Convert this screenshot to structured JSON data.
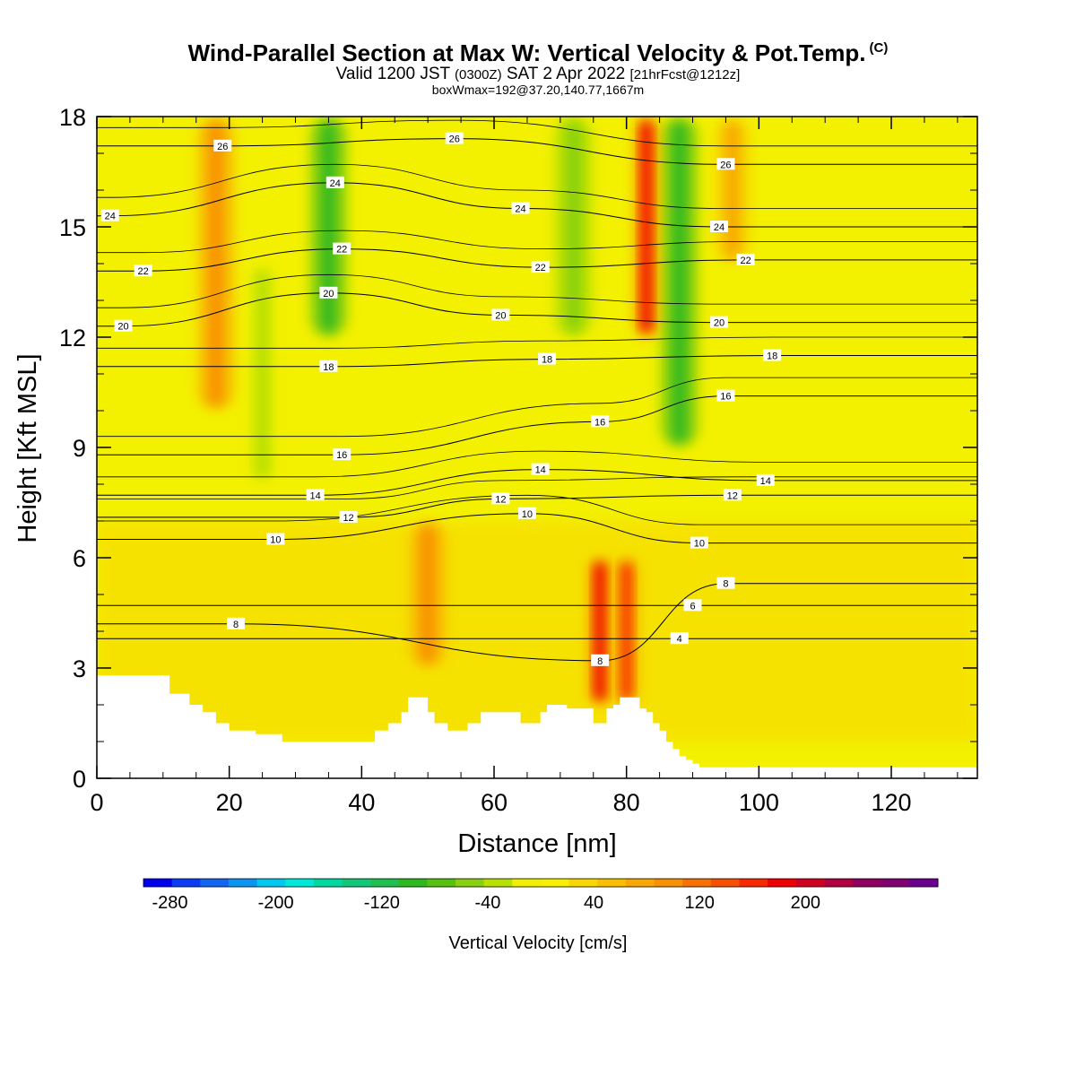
{
  "title": {
    "main": "Wind-Parallel Section at Max W: Vertical Velocity & Pot.Temp.",
    "copyright": "(C)",
    "line2_a": "Valid 1200 JST",
    "line2_b": "(0300Z)",
    "line2_c": "SAT 2 Apr 2022",
    "line2_d": "[21hrFcst@1212z]",
    "line3": "boxWmax=192@37.20,140.77,1667m"
  },
  "chart_data": {
    "type": "heatmap",
    "xlabel": "Distance [nm]",
    "ylabel": "Height [Kft MSL]",
    "xlim": [
      0,
      133
    ],
    "ylim": [
      0,
      18
    ],
    "x_ticks": [
      0,
      20,
      40,
      60,
      80,
      100,
      120
    ],
    "y_ticks": [
      0,
      3,
      6,
      9,
      12,
      15,
      18
    ],
    "colorbar": {
      "label": "Vertical Velocity [cm/s]",
      "tick_labels": [
        "-280",
        "-200",
        "-120",
        "-40",
        "40",
        "120",
        "200"
      ],
      "tick_values": [
        -280,
        -200,
        -120,
        -40,
        40,
        120,
        200
      ],
      "range": [
        -300,
        300
      ],
      "colors": [
        "#0000f0",
        "#0a3cf5",
        "#1464f0",
        "#0a96f0",
        "#00c8f0",
        "#00e8d8",
        "#00d8a0",
        "#10c878",
        "#20c050",
        "#30b820",
        "#58c010",
        "#88d010",
        "#b8e000",
        "#f0f000",
        "#f8f000",
        "#f8d800",
        "#f8c000",
        "#f8a800",
        "#f89000",
        "#f87000",
        "#f85000",
        "#f82800",
        "#f00000",
        "#d00020",
        "#b00040",
        "#900060",
        "#800070",
        "#6a0090"
      ]
    },
    "updrafts": [
      {
        "x": 18,
        "bottom": 10,
        "top": 18,
        "value": 100
      },
      {
        "x": 50,
        "bottom": 3,
        "top": 7,
        "value": 100
      },
      {
        "x": 76,
        "bottom": 2,
        "top": 6,
        "value": 180
      },
      {
        "x": 80,
        "bottom": 2,
        "top": 6,
        "value": 160
      },
      {
        "x": 83,
        "bottom": 12,
        "top": 18,
        "value": 180
      },
      {
        "x": 96,
        "bottom": 14,
        "top": 18,
        "value": 80
      }
    ],
    "downdrafts": [
      {
        "x": 35,
        "bottom": 12,
        "top": 18,
        "value": -100
      },
      {
        "x": 88,
        "bottom": 9,
        "top": 18,
        "value": -100
      },
      {
        "x": 72,
        "bottom": 12,
        "top": 18,
        "value": -60
      },
      {
        "x": 25,
        "bottom": 8,
        "top": 14,
        "value": -40
      }
    ],
    "theta_contours": [
      {
        "level": 4,
        "label": "4",
        "label_at": [
          88,
          3.8
        ]
      },
      {
        "level": 6,
        "label": "6",
        "label_at": [
          90,
          4.7
        ]
      },
      {
        "level": 8,
        "label": "8",
        "label_at": [
          21,
          4.2
        ]
      },
      {
        "level": 8,
        "label": "8",
        "label_at": [
          76,
          3.2
        ]
      },
      {
        "level": 8,
        "label": "8",
        "label_at": [
          95,
          5.3
        ]
      },
      {
        "level": 10,
        "label": "10",
        "label_at": [
          27,
          6.5
        ]
      },
      {
        "level": 10,
        "label": "10",
        "label_at": [
          65,
          7.2
        ]
      },
      {
        "level": 10,
        "label": "10",
        "label_at": [
          91,
          6.4
        ]
      },
      {
        "level": 12,
        "label": "12",
        "label_at": [
          38,
          7.1
        ]
      },
      {
        "level": 12,
        "label": "12",
        "label_at": [
          61,
          7.6
        ]
      },
      {
        "level": 12,
        "label": "12",
        "label_at": [
          96,
          7.7
        ]
      },
      {
        "level": 14,
        "label": "14",
        "label_at": [
          33,
          7.7
        ]
      },
      {
        "level": 14,
        "label": "14",
        "label_at": [
          67,
          8.4
        ]
      },
      {
        "level": 14,
        "label": "14",
        "label_at": [
          101,
          8.1
        ]
      },
      {
        "level": 16,
        "label": "16",
        "label_at": [
          37,
          8.8
        ]
      },
      {
        "level": 16,
        "label": "16",
        "label_at": [
          76,
          9.7
        ]
      },
      {
        "level": 16,
        "label": "16",
        "label_at": [
          95,
          10.4
        ]
      },
      {
        "level": 18,
        "label": "18",
        "label_at": [
          35,
          11.2
        ]
      },
      {
        "level": 18,
        "label": "18",
        "label_at": [
          68,
          11.4
        ]
      },
      {
        "level": 18,
        "label": "18",
        "label_at": [
          102,
          11.5
        ]
      },
      {
        "level": 20,
        "label": "20",
        "label_at": [
          4,
          12.3
        ]
      },
      {
        "level": 20,
        "label": "20",
        "label_at": [
          35,
          13.2
        ]
      },
      {
        "level": 20,
        "label": "20",
        "label_at": [
          61,
          12.6
        ]
      },
      {
        "level": 20,
        "label": "20",
        "label_at": [
          94,
          12.4
        ]
      },
      {
        "level": 22,
        "label": "22",
        "label_at": [
          7,
          13.8
        ]
      },
      {
        "level": 22,
        "label": "22",
        "label_at": [
          37,
          14.4
        ]
      },
      {
        "level": 22,
        "label": "22",
        "label_at": [
          67,
          13.9
        ]
      },
      {
        "level": 22,
        "label": "22",
        "label_at": [
          98,
          14.1
        ]
      },
      {
        "level": 24,
        "label": "24",
        "label_at": [
          2,
          15.3
        ]
      },
      {
        "level": 24,
        "label": "24",
        "label_at": [
          36,
          16.2
        ]
      },
      {
        "level": 24,
        "label": "24",
        "label_at": [
          64,
          15.5
        ]
      },
      {
        "level": 24,
        "label": "24",
        "label_at": [
          94,
          15.0
        ]
      },
      {
        "level": 26,
        "label": "26",
        "label_at": [
          19,
          17.2
        ]
      },
      {
        "level": 26,
        "label": "26",
        "label_at": [
          54,
          17.4
        ]
      },
      {
        "level": 26,
        "label": "26",
        "label_at": [
          95,
          16.7
        ]
      }
    ],
    "terrain": [
      [
        0,
        2.8
      ],
      [
        8,
        2.8
      ],
      [
        10,
        2.8
      ],
      [
        11,
        2.3
      ],
      [
        13,
        2.3
      ],
      [
        14,
        2.0
      ],
      [
        15,
        2.0
      ],
      [
        16,
        1.8
      ],
      [
        17,
        1.8
      ],
      [
        18,
        1.5
      ],
      [
        19,
        1.5
      ],
      [
        20,
        1.3
      ],
      [
        22,
        1.3
      ],
      [
        24,
        1.2
      ],
      [
        26,
        1.2
      ],
      [
        28,
        1.0
      ],
      [
        36,
        1.0
      ],
      [
        40,
        1.0
      ],
      [
        42,
        1.3
      ],
      [
        44,
        1.5
      ],
      [
        46,
        1.8
      ],
      [
        47,
        2.2
      ],
      [
        49,
        2.2
      ],
      [
        50,
        1.8
      ],
      [
        51,
        1.5
      ],
      [
        52,
        1.5
      ],
      [
        53,
        1.3
      ],
      [
        55,
        1.3
      ],
      [
        56,
        1.5
      ],
      [
        58,
        1.8
      ],
      [
        60,
        1.8
      ],
      [
        63,
        1.8
      ],
      [
        64,
        1.5
      ],
      [
        66,
        1.5
      ],
      [
        67,
        1.8
      ],
      [
        68,
        2.0
      ],
      [
        70,
        2.0
      ],
      [
        71,
        1.9
      ],
      [
        74,
        1.9
      ],
      [
        75,
        1.5
      ],
      [
        76,
        1.5
      ],
      [
        77,
        1.9
      ],
      [
        78,
        2.0
      ],
      [
        79,
        2.2
      ],
      [
        81,
        2.2
      ],
      [
        82,
        1.9
      ],
      [
        83,
        1.8
      ],
      [
        84,
        1.5
      ],
      [
        85,
        1.3
      ],
      [
        86,
        1.0
      ],
      [
        87,
        0.8
      ],
      [
        88,
        0.6
      ],
      [
        89,
        0.5
      ],
      [
        90,
        0.4
      ],
      [
        91,
        0.3
      ],
      [
        133,
        0.3
      ]
    ]
  }
}
